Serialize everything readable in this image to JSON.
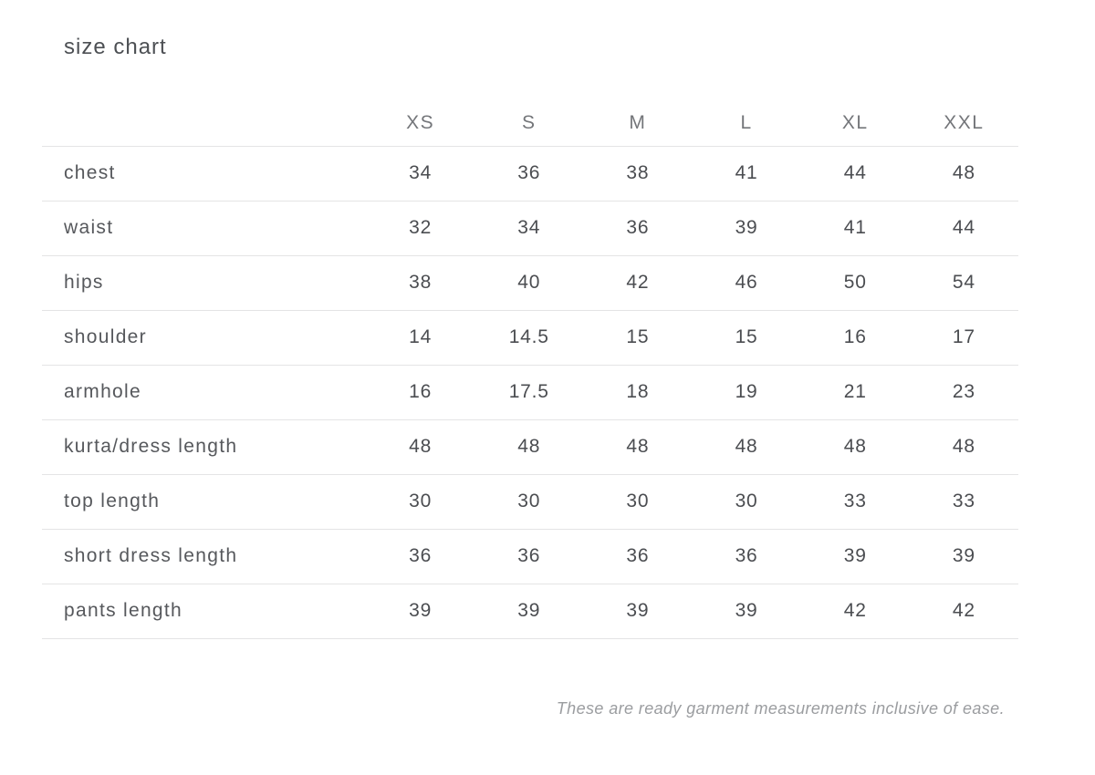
{
  "page_title": "size chart",
  "chart_data": {
    "type": "table",
    "title": "size chart",
    "columns": [
      "XS",
      "S",
      "M",
      "L",
      "XL",
      "XXL"
    ],
    "rows": [
      {
        "label": "chest",
        "values": [
          "34",
          "36",
          "38",
          "41",
          "44",
          "48"
        ]
      },
      {
        "label": "waist",
        "values": [
          "32",
          "34",
          "36",
          "39",
          "41",
          "44"
        ]
      },
      {
        "label": "hips",
        "values": [
          "38",
          "40",
          "42",
          "46",
          "50",
          "54"
        ]
      },
      {
        "label": "shoulder",
        "values": [
          "14",
          "14.5",
          "15",
          "15",
          "16",
          "17"
        ]
      },
      {
        "label": "armhole",
        "values": [
          "16",
          "17.5",
          "18",
          "19",
          "21",
          "23"
        ]
      },
      {
        "label": "kurta/dress length",
        "values": [
          "48",
          "48",
          "48",
          "48",
          "48",
          "48"
        ]
      },
      {
        "label": "top length",
        "values": [
          "30",
          "30",
          "30",
          "30",
          "33",
          "33"
        ]
      },
      {
        "label": "short dress length",
        "values": [
          "36",
          "36",
          "36",
          "36",
          "39",
          "39"
        ]
      },
      {
        "label": "pants length",
        "values": [
          "39",
          "39",
          "39",
          "39",
          "42",
          "42"
        ]
      }
    ],
    "footnote": "These are ready garment measurements inclusive of ease.",
    "layout": {
      "grid": "row-dividers-only",
      "legend": "none",
      "value_alignment": "center"
    }
  },
  "colors": {
    "background": "#ffffff",
    "title": "#4d5054",
    "column_header": "#74767a",
    "row_label": "#56585c",
    "value": "#4b4d51",
    "divider": "#e4e4e5",
    "footnote": "#9b9da0"
  }
}
